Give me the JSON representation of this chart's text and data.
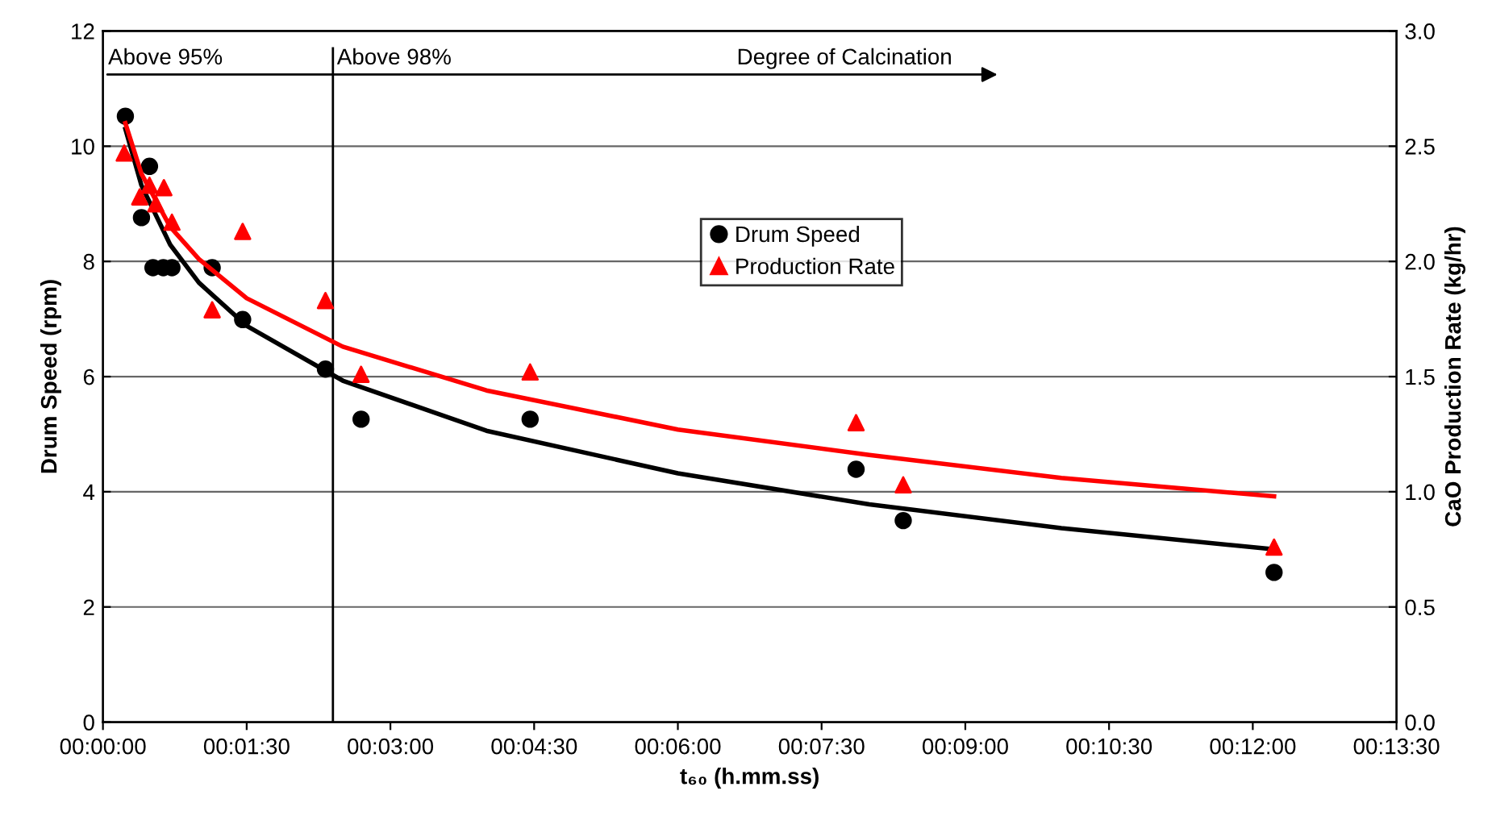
{
  "chart_data": {
    "type": "scatter",
    "xlabel": "t₆₀ (h.mm.ss)",
    "ylabel": "Drum Speed (rpm)",
    "y2label": "CaO Production Rate (kg/hr)",
    "xlim": [
      0,
      0.225
    ],
    "xticks": [
      {
        "value": 0,
        "label": "00:00:00"
      },
      {
        "value": 0.025,
        "label": "00:01:30"
      },
      {
        "value": 0.05,
        "label": "00:03:00"
      },
      {
        "value": 0.075,
        "label": "00:04:30"
      },
      {
        "value": 0.1,
        "label": "00:06:00"
      },
      {
        "value": 0.125,
        "label": "00:07:30"
      },
      {
        "value": 0.15,
        "label": "00:09:00"
      },
      {
        "value": 0.175,
        "label": "00:10:30"
      },
      {
        "value": 0.2,
        "label": "00:12:00"
      },
      {
        "value": 0.225,
        "label": "00:13:30"
      }
    ],
    "ylim": [
      0,
      12
    ],
    "yticks": [
      0,
      2,
      4,
      6,
      8,
      10,
      12
    ],
    "y2lim": [
      0,
      3
    ],
    "y2ticks": [
      {
        "value": 0,
        "label": "0.0"
      },
      {
        "value": 0.5,
        "label": "0.5"
      },
      {
        "value": 1,
        "label": "1.0"
      },
      {
        "value": 1.5,
        "label": "1.5"
      },
      {
        "value": 2,
        "label": "2.0"
      },
      {
        "value": 2.5,
        "label": "2.5"
      },
      {
        "value": 3,
        "label": "3.0"
      }
    ],
    "grid": "y",
    "legend": "center",
    "series": [
      {
        "name": "Drum Speed",
        "marker": "circle",
        "color": "#000000",
        "x": [
          0.0039,
          0.0081,
          0.0067,
          0.0087,
          0.0105,
          0.012,
          0.019,
          0.0243,
          0.0387,
          0.0449,
          0.0743,
          0.131,
          0.1392,
          0.2037
        ],
        "values": [
          10.52,
          9.65,
          8.76,
          7.89,
          7.89,
          7.89,
          7.89,
          6.99,
          6.13,
          5.26,
          5.26,
          4.39,
          3.5,
          2.6
        ]
      },
      {
        "name": "Production Rate",
        "marker": "triangle",
        "color": "#ff0000",
        "axis": "y2",
        "x": [
          0.0037,
          0.0064,
          0.0081,
          0.0092,
          0.0106,
          0.012,
          0.019,
          0.0243,
          0.0387,
          0.0449,
          0.0743,
          0.131,
          0.1392,
          0.2037
        ],
        "values": [
          2.47,
          2.28,
          2.33,
          2.25,
          2.32,
          2.17,
          1.79,
          2.13,
          1.83,
          1.51,
          1.52,
          1.3,
          1.03,
          0.76
        ]
      },
      {
        "type": "line",
        "marker": "none",
        "color": "#000000",
        "x": [
          0.0039,
          0.0067,
          0.0117,
          0.0167,
          0.025,
          0.0417,
          0.0667,
          0.1,
          0.1333,
          0.1667,
          0.2037
        ],
        "values": [
          10.3,
          9.32,
          8.29,
          7.63,
          6.88,
          5.93,
          5.06,
          4.32,
          3.78,
          3.37,
          3.0
        ]
      },
      {
        "type": "line",
        "marker": "none",
        "color": "#ff0000",
        "axis": "y2",
        "x": [
          0.0039,
          0.0067,
          0.0117,
          0.0167,
          0.025,
          0.0417,
          0.0667,
          0.1,
          0.1333,
          0.1667,
          0.2037
        ],
        "values": [
          2.6,
          2.38,
          2.15,
          2.01,
          1.84,
          1.63,
          1.44,
          1.27,
          1.16,
          1.06,
          0.98
        ]
      }
    ],
    "ref_lines": [
      {
        "axis": "x",
        "value": 0.04,
        "label": "Above 98%",
        "color": "#000000"
      }
    ],
    "annotations": [
      "Above 95%",
      "Degree of Calcination"
    ]
  }
}
